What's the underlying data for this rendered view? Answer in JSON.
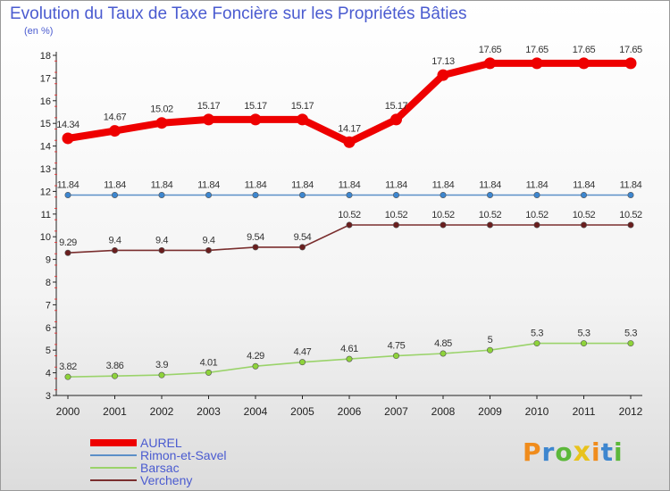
{
  "chart_data": {
    "type": "line",
    "title": "Evolution du Taux de Taxe Foncière sur les Propriétés Bâties",
    "ylabel": "(en %)",
    "xlabel": "",
    "ylim": [
      3,
      18
    ],
    "yticks": [
      "3",
      "4",
      "5",
      "6",
      "7",
      "8",
      "9",
      "10",
      "11",
      "12",
      "13",
      "14",
      "15",
      "16",
      "17",
      "18"
    ],
    "categories": [
      "2000",
      "2001",
      "2002",
      "2003",
      "2004",
      "2005",
      "2006",
      "2007",
      "2008",
      "2009",
      "2010",
      "2011",
      "2012"
    ],
    "series": [
      {
        "name": "Rimon-et-Savel",
        "color": "#5b8fc7",
        "marker_color": "#3d86cf",
        "values": [
          11.84,
          11.84,
          11.84,
          11.84,
          11.84,
          11.84,
          11.84,
          11.84,
          11.84,
          11.84,
          11.84,
          11.84,
          11.84
        ],
        "labels": [
          "11.84",
          "11.84",
          "11.84",
          "11.84",
          "11.84",
          "11.84",
          "11.84",
          "11.84",
          "11.84",
          "11.84",
          "11.84",
          "11.84",
          "11.84"
        ]
      },
      {
        "name": "Barsac",
        "color": "#9ad36a",
        "marker_color": "#8ed33a",
        "values": [
          3.82,
          3.86,
          3.9,
          4.01,
          4.29,
          4.47,
          4.61,
          4.75,
          4.85,
          5,
          5.3,
          5.3,
          5.3
        ],
        "labels": [
          "3.82",
          "3.86",
          "3.9",
          "4.01",
          "4.29",
          "4.47",
          "4.61",
          "4.75",
          "4.85",
          "5",
          "5.3",
          "5.3",
          "5.3"
        ]
      },
      {
        "name": "Vercheny",
        "color": "#7a2e2e",
        "marker_color": "#6a1e1e",
        "values": [
          9.29,
          9.4,
          9.4,
          9.4,
          9.54,
          9.54,
          10.52,
          10.52,
          10.52,
          10.52,
          10.52,
          10.52,
          10.52
        ],
        "labels": [
          "9.29",
          "9.4",
          "9.4",
          "9.4",
          "9.54",
          "9.54",
          "10.52",
          "10.52",
          "10.52",
          "10.52",
          "10.52",
          "10.52",
          "10.52"
        ]
      },
      {
        "name": "AUREL",
        "color": "#ee0000",
        "marker_color": "#ee0000",
        "values": [
          14.34,
          14.67,
          15.02,
          15.17,
          15.17,
          15.17,
          14.17,
          15.17,
          17.13,
          17.65,
          17.65,
          17.65,
          17.65
        ],
        "labels": [
          "14.34",
          "14.67",
          "15.02",
          "15.17",
          "15.17",
          "15.17",
          "14.17",
          "15.17",
          "17.13",
          "17.65",
          "17.65",
          "17.65",
          "17.65"
        ]
      }
    ],
    "legend": [
      {
        "name": "AUREL",
        "color": "#ee0000",
        "style": "thick"
      },
      {
        "name": "Rimon-et-Savel",
        "color": "#5b8fc7",
        "style": "thin"
      },
      {
        "name": "Barsac",
        "color": "#9ad36a",
        "style": "thin"
      },
      {
        "name": "Vercheny",
        "color": "#7a2e2e",
        "style": "thin"
      }
    ],
    "legend_position": "bottom-left",
    "grid": false
  },
  "branding": {
    "logo_letters": [
      "P",
      "r",
      "o",
      "x",
      "i",
      "t",
      "i"
    ],
    "logo_colors": [
      "#f08c1c",
      "#3d86cf",
      "#5cb83a",
      "#e8c21c",
      "#f08c1c",
      "#3d86cf",
      "#5cb83a"
    ]
  }
}
